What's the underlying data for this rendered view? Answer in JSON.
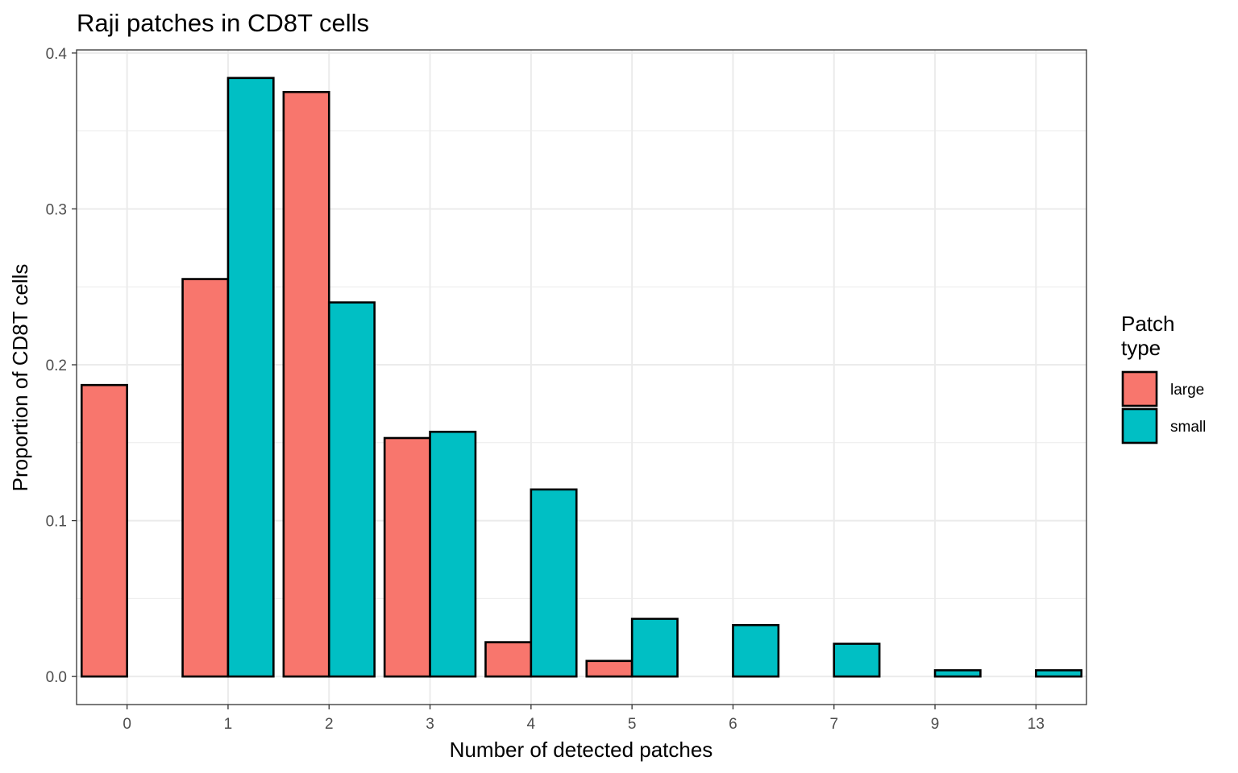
{
  "chart_data": {
    "type": "bar",
    "title": "Raji patches in CD8T cells",
    "xlabel": "Number of detected patches",
    "ylabel": "Proportion of CD8T cells",
    "categories": [
      "0",
      "1",
      "2",
      "3",
      "4",
      "5",
      "6",
      "7",
      "9",
      "13"
    ],
    "series": [
      {
        "name": "large",
        "color": "#F8766D",
        "values": [
          0.187,
          0.255,
          0.375,
          0.153,
          0.022,
          0.01,
          0.0,
          0.0,
          0.0,
          0.0
        ]
      },
      {
        "name": "small",
        "color": "#00BFC4",
        "values": [
          0.0,
          0.384,
          0.24,
          0.157,
          0.12,
          0.037,
          0.033,
          0.021,
          0.004,
          0.004
        ]
      }
    ],
    "ylim": [
      -0.018,
      0.402
    ],
    "yticks": [
      0.0,
      0.1,
      0.2,
      0.3,
      0.4
    ],
    "ytick_labels": [
      "0.0",
      "0.1",
      "0.2",
      "0.3",
      "0.4"
    ],
    "legend": {
      "title_lines": [
        "Patch",
        "type"
      ],
      "position": "right"
    },
    "grid": true,
    "bar_outline_color": "#000000"
  }
}
